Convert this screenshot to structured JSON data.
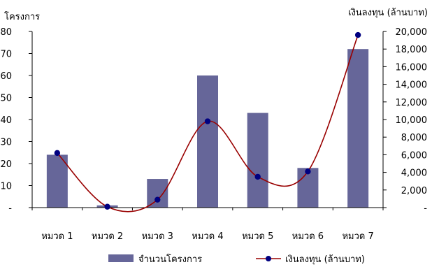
{
  "chart_data": {
    "type": "bar",
    "categories": [
      "หมวด 1",
      "หมวด 2",
      "หมวด 3",
      "หมวด 4",
      "หมวด 5",
      "หมวด 6",
      "หมวด 7"
    ],
    "series": [
      {
        "name": "จำนวนโครงการ",
        "type": "bar",
        "axis": "left",
        "color": "#666699",
        "values": [
          24,
          1,
          13,
          60,
          43,
          18,
          72
        ]
      },
      {
        "name": "เงินลงทุน (ล้านบาท)",
        "type": "line",
        "smooth": true,
        "axis": "right",
        "color": "#990000",
        "marker_color": "#000080",
        "values": [
          6200,
          100,
          900,
          9800,
          3500,
          4100,
          19600
        ]
      }
    ],
    "ylabel_left": "โครงการ",
    "ylabel_right": "เงินลงทุน (ล้านบาท)",
    "ylim_left": [
      0,
      80
    ],
    "ylim_right": [
      0,
      20000
    ],
    "yticks_left": [
      "-",
      "10",
      "20",
      "30",
      "40",
      "50",
      "60",
      "70",
      "80"
    ],
    "yticks_right": [
      "-",
      "2,000",
      "4,000",
      "6,000",
      "8,000",
      "10,000",
      "12,000",
      "14,000",
      "16,000",
      "18,000",
      "20,000"
    ],
    "grid": false,
    "legend_position": "bottom"
  }
}
